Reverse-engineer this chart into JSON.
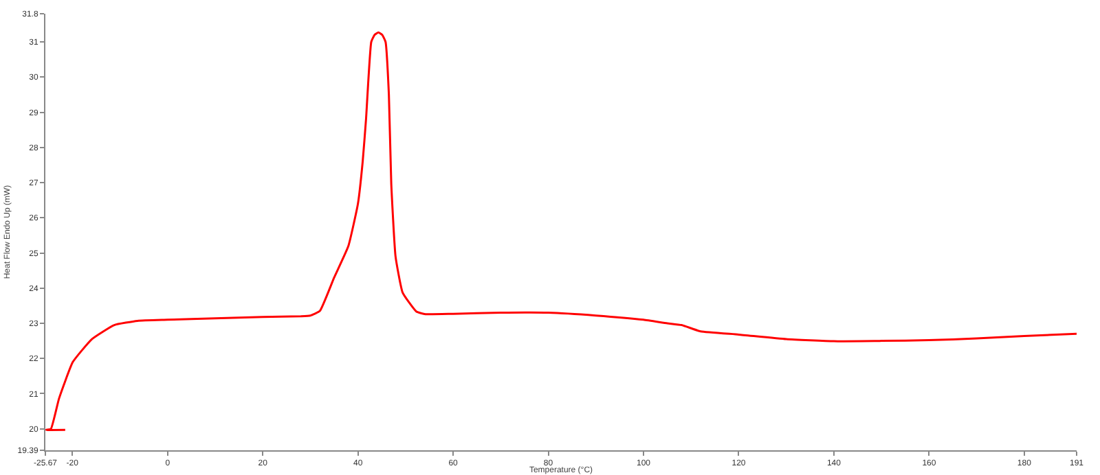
{
  "chart_data": {
    "type": "line",
    "xlabel": "Temperature (°C)",
    "ylabel": "Heat Flow Endo Up (mW)",
    "series": [
      {
        "color": "#ff0000",
        "x": [
          -21.5,
          -25.5,
          -24.5,
          -22.8,
          -19.9,
          -15.9,
          -11.2,
          -6.3,
          0,
          10,
          20,
          28,
          30,
          32,
          35,
          38,
          40,
          41,
          41.7,
          42.8,
          43.5,
          44.3,
          45.1,
          45.8,
          46.5,
          47,
          47.9,
          49.4,
          52.3,
          54.2,
          60,
          70,
          80,
          90,
          100,
          105,
          108,
          112,
          120,
          130,
          140,
          150,
          160,
          170,
          180,
          191
        ],
        "values": [
          19.97,
          19.97,
          20.0,
          20.86,
          21.9,
          22.55,
          22.95,
          23.07,
          23.1,
          23.14,
          23.18,
          23.2,
          23.22,
          23.35,
          24.3,
          25.2,
          26.4,
          27.6,
          28.8,
          31.0,
          31.2,
          31.27,
          31.2,
          31.0,
          29.5,
          26.97,
          24.9,
          23.87,
          23.33,
          23.26,
          23.27,
          23.3,
          23.3,
          23.22,
          23.1,
          23.0,
          22.95,
          22.77,
          22.68,
          22.55,
          22.49,
          22.5,
          22.52,
          22.57,
          22.64,
          22.7
        ]
      }
    ],
    "xlim": [
      -25.67,
      191
    ],
    "xticks": [
      -25.67,
      -20,
      0,
      20,
      40,
      60,
      80,
      100,
      120,
      140,
      160,
      180,
      191
    ],
    "ylim": [
      19.39,
      31.8
    ],
    "yticks": [
      19.39,
      20,
      21,
      22,
      23,
      24,
      25,
      26,
      27,
      28,
      29,
      30,
      31,
      31.8
    ],
    "marker": "none",
    "line_style": "solid"
  }
}
